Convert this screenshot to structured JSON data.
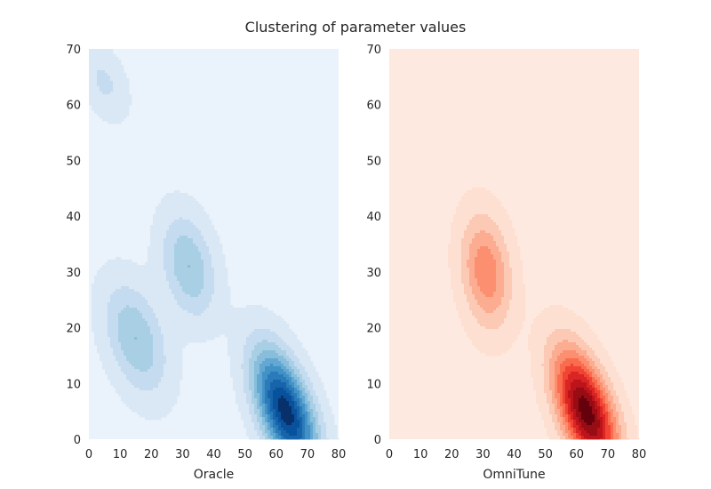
{
  "figure": {
    "title": "Clustering of parameter values"
  },
  "chart_data": [
    {
      "type": "contour",
      "xlabel": "Oracle",
      "xlim": [
        0,
        80
      ],
      "ylim": [
        0,
        70
      ],
      "xticks": [
        0,
        10,
        20,
        30,
        40,
        50,
        60,
        70,
        80
      ],
      "yticks": [
        0,
        10,
        20,
        30,
        40,
        50,
        60,
        70
      ],
      "grid": false,
      "colormap": "Blues",
      "background": "#eaf2fb",
      "levels": [
        "#dae8f5",
        "#c5dbef",
        "#a9cfe5",
        "#88bedc",
        "#63a8d3",
        "#4292c6",
        "#2b7bba",
        "#1764ab",
        "#08519c",
        "#08306b"
      ],
      "clusters": [
        {
          "x": 63,
          "y": 5,
          "weight": 1.0
        },
        {
          "x": 32,
          "y": 31,
          "weight": 0.34
        },
        {
          "x": 15,
          "y": 18,
          "weight": 0.34
        },
        {
          "x": 5,
          "y": 64,
          "weight": 0.16
        }
      ]
    },
    {
      "type": "contour",
      "xlabel": "OmniTune",
      "xlim": [
        0,
        80
      ],
      "ylim": [
        0,
        70
      ],
      "xticks": [
        0,
        10,
        20,
        30,
        40,
        50,
        60,
        70,
        80
      ],
      "yticks": [
        0,
        10,
        20,
        30,
        40,
        50,
        60,
        70
      ],
      "grid": false,
      "colormap": "Reds",
      "background": "#fee9e0",
      "levels": [
        "#fde0d2",
        "#fcc9b4",
        "#fcad91",
        "#fc8f6f",
        "#fa6c4e",
        "#f14432",
        "#d92523",
        "#bc141a",
        "#980c13",
        "#67000d"
      ],
      "clusters": [
        {
          "x": 63,
          "y": 5,
          "weight": 1.0
        },
        {
          "x": 31,
          "y": 30,
          "weight": 0.42
        }
      ]
    }
  ]
}
